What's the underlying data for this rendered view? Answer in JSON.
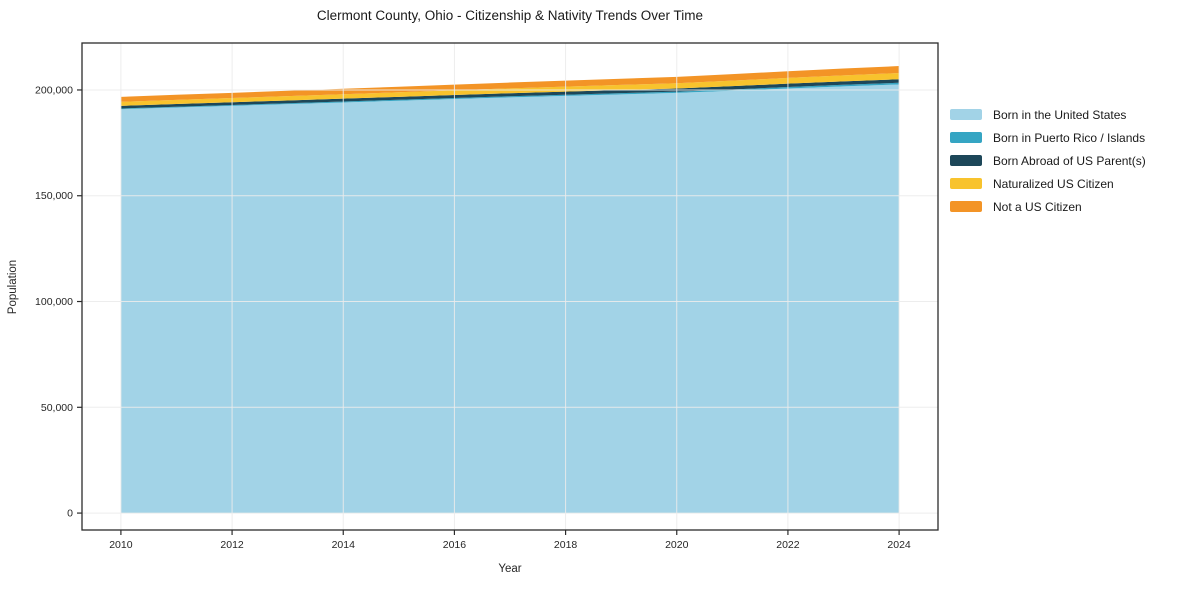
{
  "title": "Clermont County, Ohio - Citizenship & Nativity Trends Over Time",
  "chart_data": {
    "type": "area",
    "stacked": true,
    "title": "Clermont County, Ohio - Citizenship & Nativity Trends Over Time",
    "xlabel": "Year",
    "ylabel": "Population",
    "grid": true,
    "legend_position": "outside-right-top",
    "x": [
      2010,
      2011,
      2012,
      2013,
      2014,
      2015,
      2016,
      2017,
      2018,
      2019,
      2020,
      2021,
      2022,
      2023,
      2024
    ],
    "xticks": [
      2010,
      2012,
      2014,
      2016,
      2018,
      2020,
      2022,
      2024
    ],
    "yticks": [
      0,
      50000,
      100000,
      150000,
      200000
    ],
    "xlim": [
      2009.3,
      2024.7
    ],
    "ylim": [
      -8000,
      222200
    ],
    "series": [
      {
        "name": "Born in the United States",
        "color": "#a2d3e7",
        "values": [
          190900,
          191700,
          192500,
          193300,
          194100,
          194900,
          195700,
          196500,
          197200,
          197900,
          198600,
          199600,
          200700,
          201700,
          202600
        ]
      },
      {
        "name": "Born in Puerto Rico / Islands",
        "color": "#35a5c3",
        "values": [
          350,
          380,
          400,
          430,
          450,
          480,
          500,
          530,
          560,
          580,
          600,
          650,
          700,
          750,
          800
        ]
      },
      {
        "name": "Born Abroad of US Parent(s)",
        "color": "#1d4759",
        "values": [
          1250,
          1280,
          1300,
          1320,
          1350,
          1380,
          1400,
          1420,
          1450,
          1480,
          1500,
          1540,
          1580,
          1620,
          1650
        ]
      },
      {
        "name": "Naturalized US Citizen",
        "color": "#f8c32d",
        "values": [
          1900,
          1950,
          2000,
          2050,
          2100,
          2170,
          2240,
          2300,
          2370,
          2440,
          2500,
          2600,
          2720,
          2840,
          2950
        ]
      },
      {
        "name": "Not a US Citizen",
        "color": "#f39426",
        "values": [
          2350,
          2400,
          2450,
          2500,
          2550,
          2620,
          2680,
          2750,
          2820,
          2900,
          3000,
          3080,
          3160,
          3230,
          3300
        ]
      }
    ],
    "colors": {
      "grid": "#ececec",
      "spine": "#2b2b2b",
      "tick_label": "#262626"
    }
  }
}
